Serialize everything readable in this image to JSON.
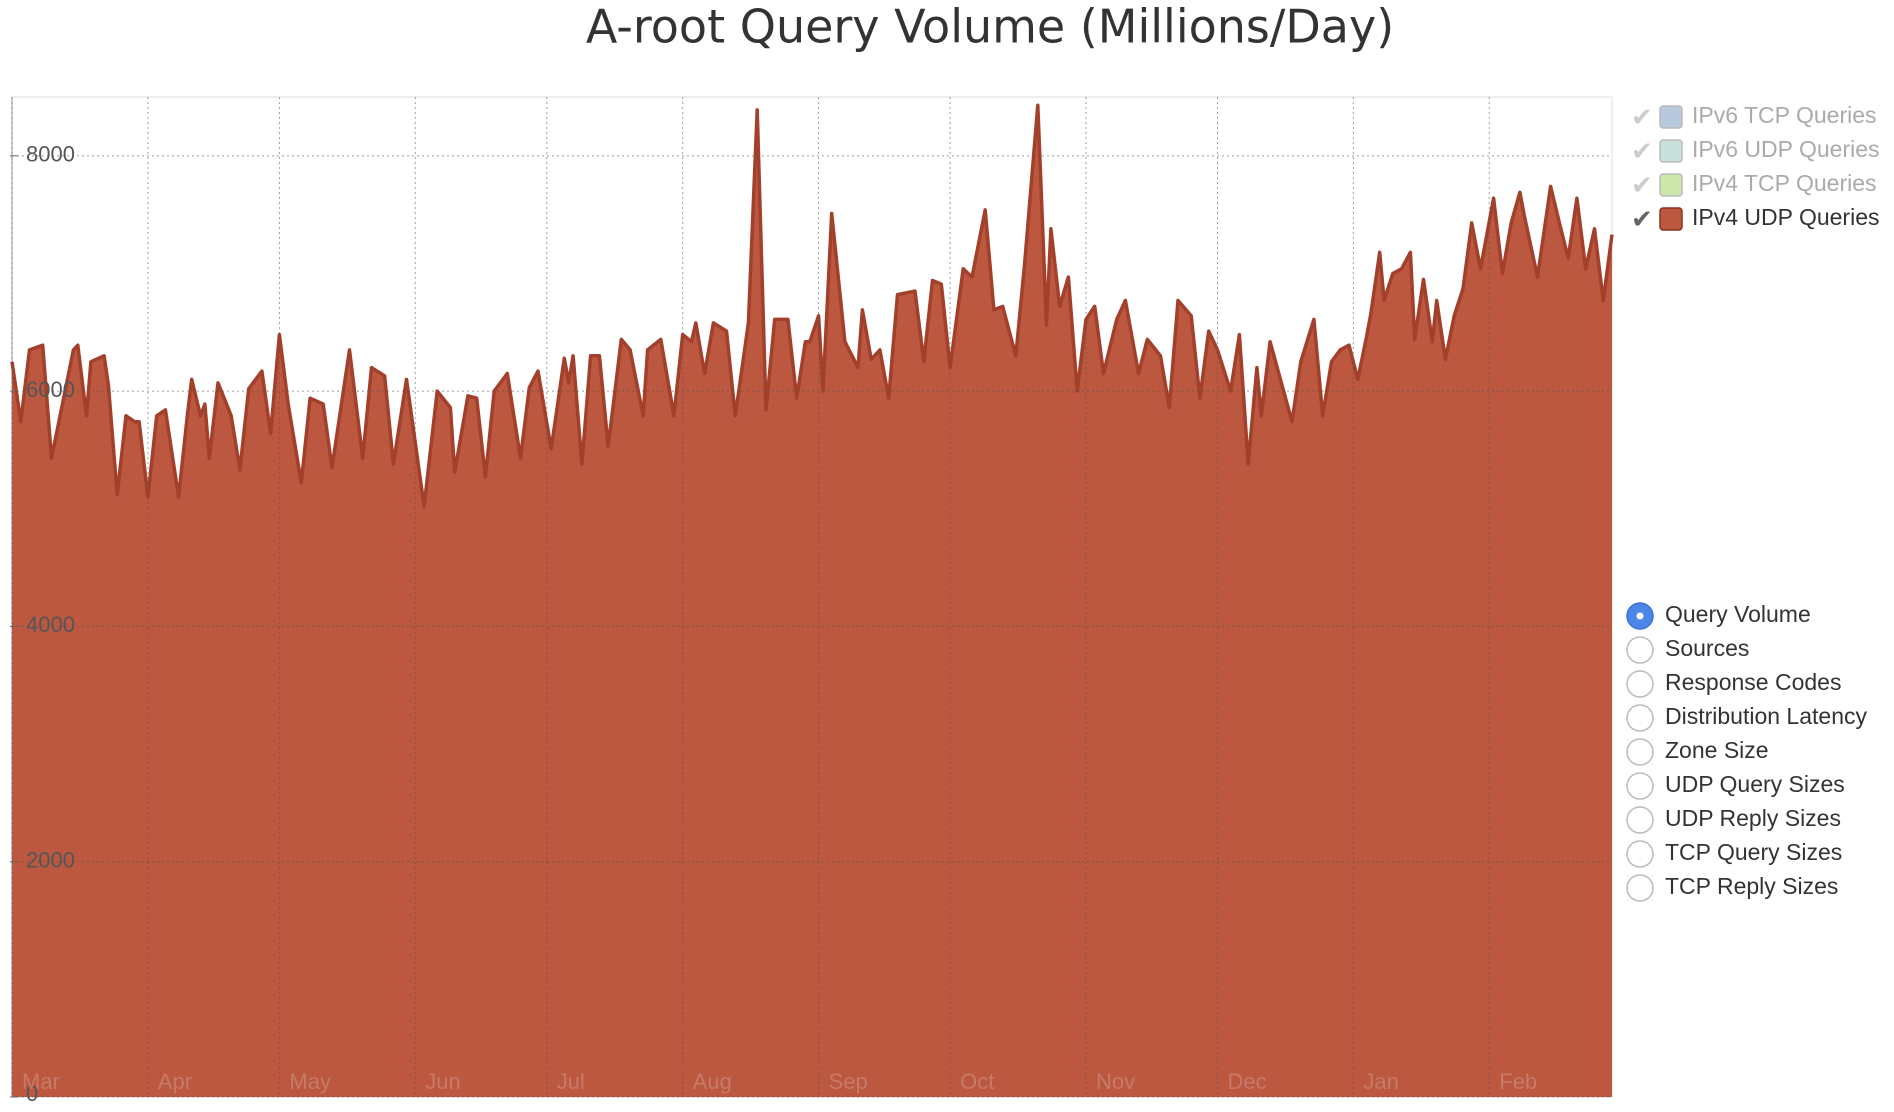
{
  "chart_data": {
    "type": "area",
    "title": "A-root Query Volume (Millions/Day)",
    "x": [
      0,
      2,
      4,
      7,
      9,
      14,
      15,
      17,
      18,
      21,
      22,
      24,
      26,
      28,
      29,
      31,
      33,
      35,
      38,
      40,
      41,
      43,
      44,
      45,
      47,
      50,
      52,
      54,
      57,
      59,
      61,
      63,
      66,
      68,
      71,
      73,
      77,
      80,
      82,
      85,
      87,
      90,
      94,
      97,
      100,
      101,
      104,
      106,
      108,
      110,
      113,
      116,
      118,
      120,
      123,
      126,
      127,
      128,
      130,
      132,
      134,
      136,
      139,
      141,
      144,
      145,
      148,
      151,
      153,
      155,
      156,
      158,
      160,
      163,
      165,
      168,
      170,
      172,
      174,
      177,
      179,
      181,
      182,
      184,
      185,
      187,
      190,
      193,
      194,
      196,
      198,
      200,
      202,
      206,
      208,
      210,
      212,
      214,
      217,
      219,
      222,
      224,
      226,
      229,
      231,
      234,
      236,
      237,
      239,
      241,
      243,
      245,
      247,
      249,
      252,
      254,
      257,
      259,
      262,
      264,
      266,
      269,
      271,
      273,
      275,
      278,
      280,
      282,
      284,
      285,
      287,
      289,
      292,
      294,
      297,
      299,
      301,
      303,
      305,
      307,
      309,
      310,
      312,
      313,
      315,
      317,
      319,
      320,
      322,
      324,
      325,
      327,
      329,
      331,
      333,
      335,
      338,
      340,
      342,
      344,
      345,
      348,
      351,
      353,
      355,
      357,
      359,
      361,
      363,
      365
    ],
    "series": [
      {
        "name": "IPv6 TCP Queries",
        "color": "#b9c9dd",
        "visible": false
      },
      {
        "name": "IPv6 UDP Queries",
        "color": "#c9e1dd",
        "visible": false
      },
      {
        "name": "IPv4 TCP Queries",
        "color": "#cde7aa",
        "visible": false
      },
      {
        "name": "IPv4 UDP Queries",
        "color": "#bc5840",
        "visible": true,
        "values": [
          6250,
          5740,
          6350,
          6390,
          5430,
          6350,
          6390,
          5790,
          6250,
          6300,
          6050,
          5120,
          5790,
          5740,
          5740,
          5100,
          5790,
          5840,
          5100,
          5790,
          6100,
          5790,
          5890,
          5430,
          6070,
          5790,
          5330,
          6020,
          6170,
          5640,
          6480,
          5890,
          5220,
          5940,
          5890,
          5350,
          6350,
          5430,
          6200,
          6130,
          5380,
          6100,
          5020,
          6000,
          5860,
          5310,
          5960,
          5940,
          5270,
          6000,
          6150,
          5430,
          6030,
          6170,
          5510,
          6280,
          6070,
          6300,
          5380,
          6300,
          6300,
          5530,
          6440,
          6350,
          5790,
          6350,
          6440,
          5790,
          6480,
          6420,
          6580,
          6150,
          6580,
          6510,
          5790,
          6580,
          8390,
          5840,
          6610,
          6610,
          5940,
          6420,
          6420,
          6640,
          6000,
          7510,
          6420,
          6200,
          6690,
          6270,
          6350,
          5940,
          6820,
          6850,
          6250,
          6940,
          6910,
          6200,
          7040,
          6970,
          7540,
          6690,
          6720,
          6300,
          7080,
          8430,
          6560,
          7380,
          6720,
          6970,
          6000,
          6610,
          6720,
          6150,
          6610,
          6770,
          6150,
          6440,
          6300,
          5860,
          6770,
          6640,
          5940,
          6510,
          6350,
          6000,
          6480,
          5380,
          6200,
          5790,
          6420,
          6150,
          5740,
          6250,
          6610,
          5790,
          6250,
          6350,
          6390,
          6100,
          6460,
          6660,
          7180,
          6770,
          7000,
          7040,
          7180,
          6440,
          6950,
          6420,
          6770,
          6270,
          6640,
          6870,
          7430,
          7040,
          7640,
          7000,
          7430,
          7690,
          7490,
          6970,
          7740,
          7430,
          7130,
          7640,
          7040,
          7380,
          6770,
          7330
        ]
      }
    ],
    "xlim": [
      0,
      365
    ],
    "xticks": [
      {
        "value": 0,
        "label": "Mar"
      },
      {
        "value": 31,
        "label": "Apr"
      },
      {
        "value": 61,
        "label": "May"
      },
      {
        "value": 92,
        "label": "Jun"
      },
      {
        "value": 122,
        "label": "Jul"
      },
      {
        "value": 153,
        "label": "Aug"
      },
      {
        "value": 184,
        "label": "Sep"
      },
      {
        "value": 214,
        "label": "Oct"
      },
      {
        "value": 245,
        "label": "Nov"
      },
      {
        "value": 275,
        "label": "Dec"
      },
      {
        "value": 306,
        "label": "Jan"
      },
      {
        "value": 337,
        "label": "Feb"
      }
    ],
    "ylim": [
      0,
      8500
    ],
    "yticks": [
      0,
      2000,
      4000,
      6000,
      8000
    ],
    "grid": true,
    "legend": "top-right"
  },
  "controls": {
    "options": [
      "Query Volume",
      "Sources",
      "Response Codes",
      "Distribution Latency",
      "Zone Size",
      "UDP Query Sizes",
      "UDP Reply Sizes",
      "TCP Query Sizes",
      "TCP Reply Sizes"
    ],
    "selected": 0
  }
}
